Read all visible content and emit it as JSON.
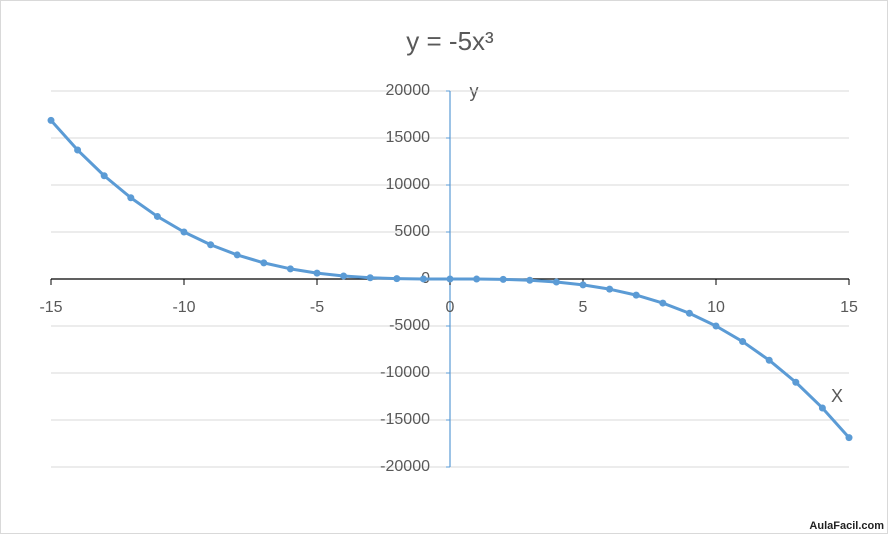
{
  "chart_data": {
    "type": "line",
    "title": "y = -5x³",
    "x_label": "X",
    "y_label": "y",
    "watermark": "AulaFacil.com",
    "x": [
      -15,
      -14,
      -13,
      -12,
      -11,
      -10,
      -9,
      -8,
      -7,
      -6,
      -5,
      -4,
      -3,
      -2,
      -1,
      0,
      1,
      2,
      3,
      4,
      5,
      6,
      7,
      8,
      9,
      10,
      11,
      12,
      13,
      14,
      15
    ],
    "series": [
      {
        "name": "y",
        "color": "#5b9bd5",
        "values": [
          16875,
          13720,
          10985,
          8640,
          6655,
          5000,
          3645,
          2560,
          1715,
          1080,
          625,
          320,
          135,
          40,
          5,
          0,
          -5,
          -40,
          -135,
          -320,
          -625,
          -1080,
          -1715,
          -2560,
          -3645,
          -5000,
          -6655,
          -8640,
          -10985,
          -13720,
          -16875
        ]
      }
    ],
    "xlim": [
      -15,
      15
    ],
    "xticks": [
      -15,
      -10,
      -5,
      0,
      5,
      10,
      15
    ],
    "ylim": [
      -20000,
      20000
    ],
    "yticks": [
      -20000,
      -15000,
      -10000,
      -5000,
      0,
      5000,
      10000,
      15000,
      20000
    ],
    "grid": true
  }
}
